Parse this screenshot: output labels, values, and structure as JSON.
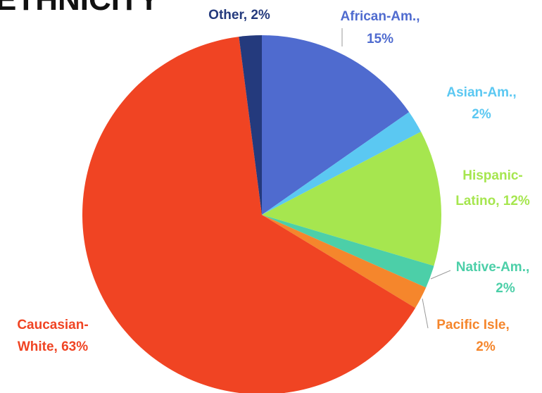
{
  "chart_data": {
    "type": "pie",
    "title": "ETHNICITY",
    "values": [
      15,
      2,
      12,
      2,
      2,
      63,
      2
    ],
    "value_labels": [
      [
        "African-Am.,",
        "15%"
      ],
      [
        "Asian-Am.,",
        "2%"
      ],
      [
        "Hispanic-",
        "Latino, 12%"
      ],
      [
        "Native-Am.,",
        "2%"
      ],
      [
        "Pacific Isle,",
        "2%"
      ],
      [
        "Caucasian-",
        "White, 63%"
      ],
      [
        "Other, 2%"
      ]
    ],
    "colors": [
      "#4f6bcf",
      "#5bc8f2",
      "#a6e64f",
      "#4ccfa8",
      "#f5862c",
      "#f04423",
      "#243a7d"
    ]
  }
}
